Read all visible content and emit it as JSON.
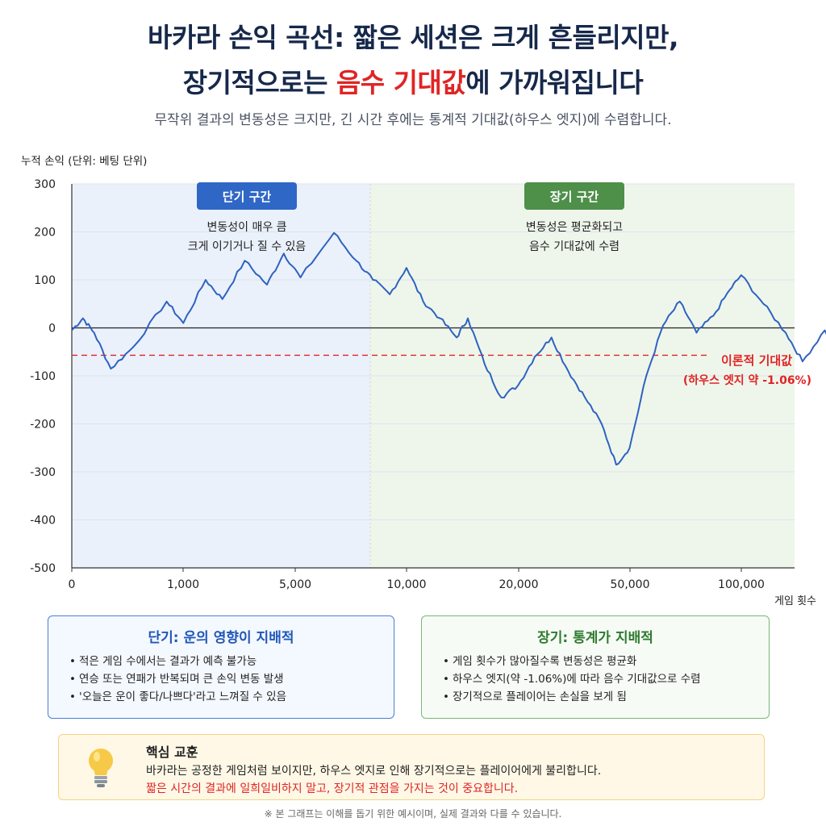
{
  "header": {
    "title_line1": "바카라 손익 곡선:  짧은 세션은 크게 흔들리지만,",
    "title_line2_pre": "장기적으로는 ",
    "title_line2_highlight": "음수 기대값",
    "title_line2_post": "에 가까워집니다",
    "subtitle": "무작위 결과의 변동성은 크지만, 긴 시간 후에는 통계적 기대값(하우스 엣지)에 수렴합니다."
  },
  "chart_data": {
    "type": "line",
    "ylabel": "누적 손익 (단위: 베팅 단위)",
    "xlabel": "게임 횟수",
    "ylim": [
      -500,
      300
    ],
    "y_ticks": [
      300,
      200,
      100,
      0,
      -100,
      -200,
      -300,
      -400,
      -500
    ],
    "y_tick_labels": [
      "300",
      "200",
      "100",
      "0",
      "-100",
      "-200",
      "-300",
      "-400",
      "-500"
    ],
    "x_ticks": [
      "0",
      "1,000",
      "5,000",
      "10,000",
      "20,000",
      "50,000",
      "100,000"
    ],
    "x_scale": "non-linear",
    "grid": "horizontal",
    "zero_line": true,
    "regions": [
      {
        "name": "short",
        "label": "단기 구간",
        "desc_line1": "변동성이 매우 큼",
        "desc_line2": "크게 이기거나 질 수 있음",
        "color": "#2f67c6",
        "bg": "#eaf1fb",
        "x_start": "0",
        "x_end": "≈7,000"
      },
      {
        "name": "long",
        "label": "장기 구간",
        "desc_line1": "변동성은 평균화되고",
        "desc_line2": "음수 기대값에 수렴",
        "color": "#4e8f4a",
        "bg": "#eef6ec",
        "x_start": "≈7,000",
        "x_end": "≈130,000"
      }
    ],
    "expected_value": {
      "y": -57,
      "label_line1": "이론적 기대값",
      "label_line2": "(하우스 엣지 약 -1.06%)",
      "color": "#e02424"
    },
    "series": [
      {
        "color": "#2f62c0",
        "values": [
          [
            0.0,
            -5
          ],
          [
            0.1,
            20
          ],
          [
            0.2,
            -10
          ],
          [
            0.35,
            -85
          ],
          [
            0.55,
            -40
          ],
          [
            0.85,
            55
          ],
          [
            1.0,
            10
          ],
          [
            1.2,
            100
          ],
          [
            1.35,
            60
          ],
          [
            1.55,
            140
          ],
          [
            1.75,
            90
          ],
          [
            1.9,
            155
          ],
          [
            2.05,
            105
          ],
          [
            2.35,
            198
          ],
          [
            2.55,
            140
          ],
          [
            2.7,
            100
          ],
          [
            2.85,
            70
          ],
          [
            3.0,
            125
          ],
          [
            3.15,
            55
          ],
          [
            3.3,
            20
          ],
          [
            3.45,
            -20
          ],
          [
            3.55,
            20
          ],
          [
            3.7,
            -75
          ],
          [
            3.85,
            -145
          ],
          [
            4.0,
            -120
          ],
          [
            4.15,
            -60
          ],
          [
            4.3,
            -20
          ],
          [
            4.45,
            -90
          ],
          [
            4.6,
            -145
          ],
          [
            4.75,
            -200
          ],
          [
            4.88,
            -285
          ],
          [
            5.0,
            -250
          ],
          [
            5.15,
            -100
          ],
          [
            5.3,
            5
          ],
          [
            5.45,
            55
          ],
          [
            5.6,
            -10
          ],
          [
            5.75,
            25
          ],
          [
            5.9,
            80
          ],
          [
            6.0,
            110
          ],
          [
            6.2,
            50
          ],
          [
            6.4,
            -10
          ],
          [
            6.55,
            -70
          ],
          [
            6.75,
            -5
          ],
          [
            6.9,
            -65
          ],
          [
            7.05,
            -110
          ],
          [
            7.2,
            -140
          ],
          [
            7.35,
            -180
          ],
          [
            7.5,
            -200
          ],
          [
            7.65,
            -150
          ],
          [
            7.8,
            -110
          ],
          [
            7.95,
            -160
          ],
          [
            8.1,
            -145
          ],
          [
            8.25,
            -120
          ],
          [
            8.4,
            -155
          ],
          [
            8.55,
            -110
          ],
          [
            8.75,
            -85
          ],
          [
            8.9,
            -45
          ],
          [
            9.1,
            -65
          ],
          [
            9.25,
            -20
          ],
          [
            9.4,
            -45
          ],
          [
            9.55,
            -70
          ],
          [
            9.7,
            -90
          ],
          [
            9.85,
            -110
          ],
          [
            10.0,
            -100
          ],
          [
            10.15,
            -125
          ],
          [
            10.35,
            -140
          ],
          [
            10.6,
            -130
          ],
          [
            10.9,
            -160
          ],
          [
            11.2,
            -145
          ],
          [
            11.5,
            -130
          ],
          [
            11.7,
            -150
          ],
          [
            12.0,
            -140
          ],
          [
            12.3,
            -165
          ],
          [
            12.6,
            -140
          ],
          [
            12.9,
            -120
          ],
          [
            13.1,
            -100
          ],
          [
            13.3,
            -120
          ],
          [
            13.55,
            -110
          ],
          [
            13.8,
            -135
          ],
          [
            14.1,
            -140
          ],
          [
            14.4,
            -135
          ],
          [
            14.8,
            -142
          ],
          [
            15.2,
            -138
          ],
          [
            15.6,
            -130
          ],
          [
            16.0,
            -143
          ],
          [
            16.4,
            -140
          ],
          [
            16.8,
            -148
          ],
          [
            17.2,
            -140
          ],
          [
            17.6,
            -128
          ],
          [
            18.0,
            -138
          ],
          [
            18.4,
            -130
          ],
          [
            18.8,
            -140
          ],
          [
            19.2,
            -150
          ],
          [
            19.6,
            -142
          ],
          [
            20.0,
            -138
          ],
          [
            20.5,
            -140
          ],
          [
            21.0,
            -136
          ],
          [
            21.5,
            -131
          ],
          [
            22.0,
            -130
          ],
          [
            22.5,
            -136
          ],
          [
            23.0,
            -134
          ]
        ]
      }
    ]
  },
  "panels": {
    "short": {
      "title": "단기: 운의 영향이 지배적",
      "items": [
        "적은 게임 수에서는 결과가 예측 불가능",
        "연승 또는 연패가 반복되며 큰 손익 변동 발생",
        "'오늘은 운이 좋다/나쁘다'라고 느껴질 수 있음"
      ]
    },
    "long": {
      "title": "장기: 통계가 지배적",
      "items": [
        "게임 횟수가 많아질수록 변동성은 평균화",
        "하우스 엣지(약 -1.06%)에 따라 음수 기대값으로 수렴",
        "장기적으로 플레이어는 손실을 보게 됨"
      ]
    }
  },
  "lesson": {
    "icon": "lightbulb-icon",
    "title": "핵심 교훈",
    "line1": "바카라는 공정한 게임처럼 보이지만, 하우스 엣지로 인해 장기적으로는 플레이어에게 불리합니다.",
    "line2": "짧은 시간의 결과에 일희일비하지 말고, 장기적 관점을 가지는 것이 중요합니다."
  },
  "footnote": "※ 본 그래프는 이해를 돕기 위한 예시이며, 실제 결과와 다를 수 있습니다."
}
